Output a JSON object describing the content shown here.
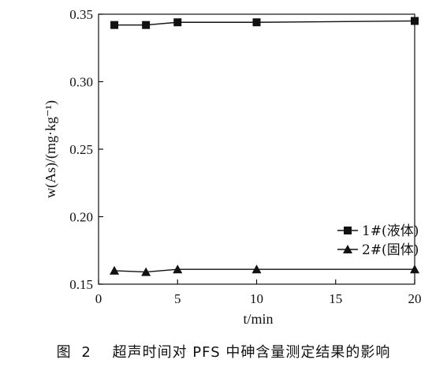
{
  "chart_data": {
    "type": "line",
    "xlabel": "t/min",
    "ylabel": "w(As)/(mg·kg⁻¹)",
    "xlim": [
      0,
      20
    ],
    "ylim": [
      0.15,
      0.35
    ],
    "xticks": [
      "0",
      "5",
      "10",
      "15",
      "20"
    ],
    "yticks": [
      "0.15",
      "0.20",
      "0.25",
      "0.30",
      "0.35"
    ],
    "grid": false,
    "legend_position": "bottom-right",
    "series": [
      {
        "name": "1#(液体)",
        "marker": "square",
        "x": [
          1,
          3,
          5,
          10,
          20
        ],
        "values": [
          0.342,
          0.342,
          0.344,
          0.344,
          0.345
        ]
      },
      {
        "name": "2#(固体)",
        "marker": "triangle",
        "x": [
          1,
          3,
          5,
          10,
          20
        ],
        "values": [
          0.16,
          0.159,
          0.161,
          0.161,
          0.161
        ]
      }
    ]
  },
  "caption": {
    "label": "图",
    "number": "2",
    "text": "超声时间对 PFS 中砷含量测定结果的影响"
  },
  "colors": {
    "line": "#111111",
    "background": "#ffffff"
  }
}
